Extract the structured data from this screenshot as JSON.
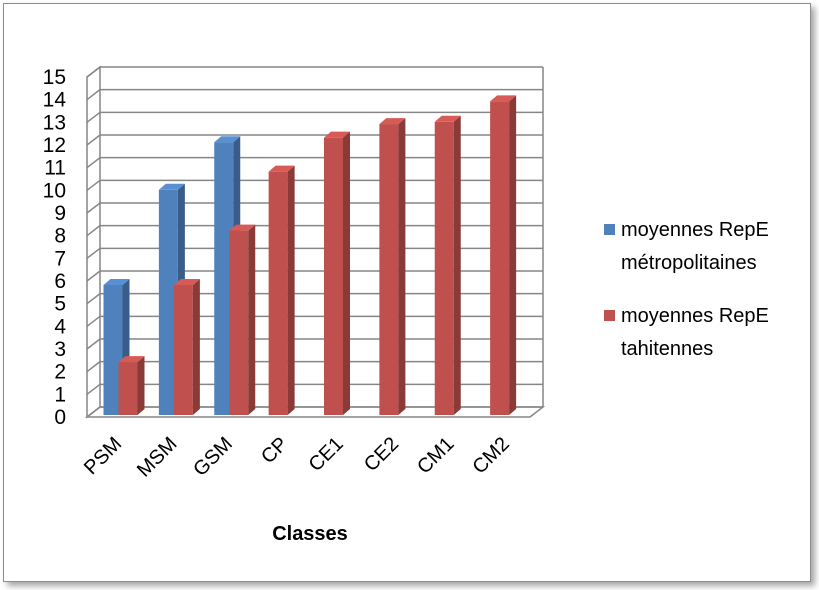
{
  "chart_data": {
    "type": "bar",
    "title": "",
    "xlabel": "Classes",
    "ylabel": "",
    "categories": [
      "PSM",
      "MSM",
      "GSM",
      "CP",
      "CE1",
      "CE2",
      "CM1",
      "CM2"
    ],
    "series": [
      {
        "name": "moyennes RepE métropolitaines",
        "color": "#4f81bd",
        "values": [
          6,
          10.2,
          12.3,
          null,
          null,
          null,
          null,
          null
        ]
      },
      {
        "name": "moyennes RepE tahitennes",
        "color": "#c0504d",
        "values": [
          2.6,
          6,
          8.4,
          11,
          12.5,
          13.1,
          13.2,
          14.1
        ]
      }
    ],
    "ylim": [
      0,
      15
    ],
    "yticks": [
      0,
      1,
      2,
      3,
      4,
      5,
      6,
      7,
      8,
      9,
      10,
      11,
      12,
      13,
      14,
      15
    ],
    "grid": true,
    "legend_position": "right",
    "three_d": true
  },
  "legend": {
    "items": [
      {
        "line1": "moyennes RepE",
        "line2": "métropolitaines",
        "color": "#4f81bd"
      },
      {
        "line1": "moyennes RepE",
        "line2": "tahitennes",
        "color": "#c0504d"
      }
    ]
  }
}
